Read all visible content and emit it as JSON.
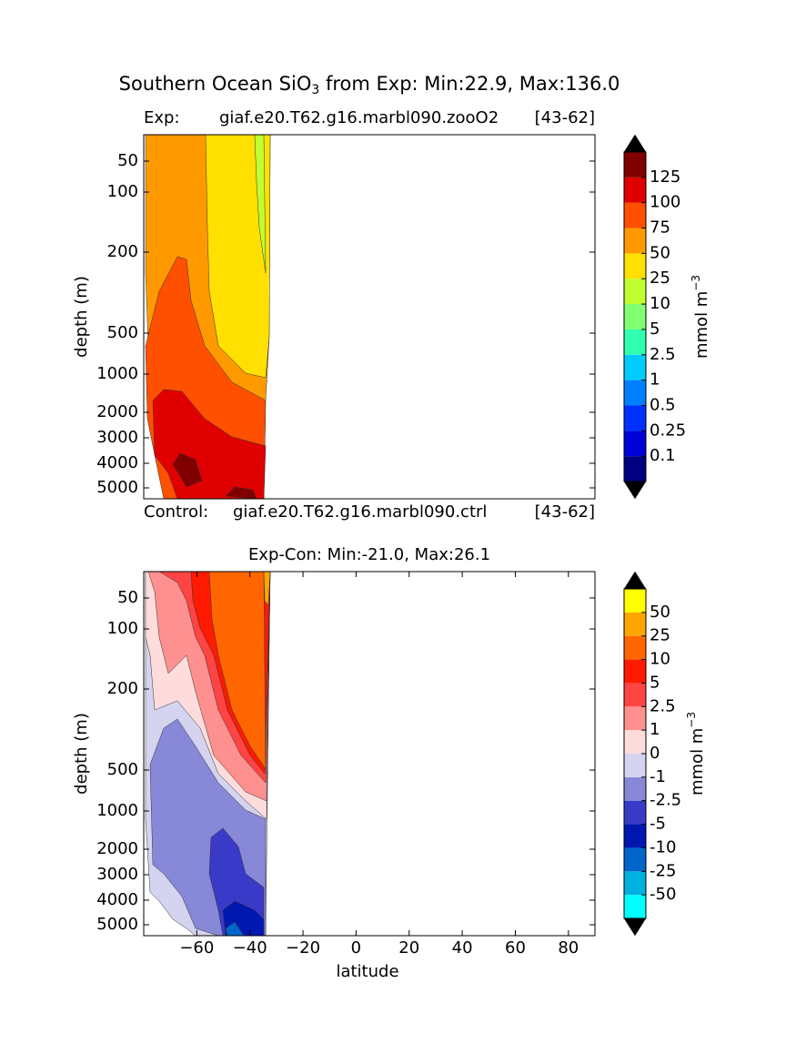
{
  "title": {
    "text": "Southern Ocean SiO",
    "sub": "3",
    "rest": " from Exp: Min:22.9, Max:136.0"
  },
  "chart_data": [
    {
      "type": "contour",
      "label_left": "Exp:",
      "label_center": "giaf.e20.T62.g16.marbl090.zooO2",
      "label_right": "[43-62]",
      "ylabel": "depth (m)",
      "ylim": [
        5500,
        5
      ],
      "yticks": [
        50,
        100,
        200,
        500,
        1000,
        2000,
        3000,
        4000,
        5000
      ],
      "xlim": [
        -80,
        90
      ],
      "colorbar": {
        "label": "mmol m",
        "label_sup": "−3",
        "levels": [
          0.1,
          0.25,
          0.5,
          1,
          2.5,
          5,
          10,
          25,
          50,
          75,
          100,
          125
        ],
        "colors": [
          "#000080",
          "#0000d8",
          "#0030ff",
          "#0080ff",
          "#00ccff",
          "#30ffb0",
          "#80ff70",
          "#c0ff30",
          "#ffe000",
          "#ff9900",
          "#ff5000",
          "#e00000",
          "#800000"
        ]
      }
    },
    {
      "type": "contour",
      "label_left": "Control:",
      "label_center": "giaf.e20.T62.g16.marbl090.ctrl",
      "label_right": "[43-62]",
      "title": "Exp-Con: Min:-21.0, Max:26.1",
      "ylabel": "depth (m)",
      "xlabel": "latitude",
      "ylim": [
        5500,
        5
      ],
      "yticks": [
        50,
        100,
        200,
        500,
        1000,
        2000,
        3000,
        4000,
        5000
      ],
      "xlim": [
        -80,
        90
      ],
      "xticks": [
        {
          "value": -60,
          "label": "−60"
        },
        {
          "value": -40,
          "label": "−40"
        },
        {
          "value": -20,
          "label": "−20"
        },
        0,
        20,
        40,
        60,
        80
      ],
      "colorbar": {
        "label": "mmol m",
        "label_sup": "−3",
        "levels": [
          -50,
          -25,
          -10,
          -5,
          -2.5,
          -1,
          0,
          1,
          2.5,
          5,
          10,
          25,
          50
        ],
        "colors": [
          "#00ffff",
          "#00b0e0",
          "#0066cc",
          "#0018b0",
          "#3a3ac8",
          "#8888d8",
          "#d4d4f0",
          "#ffdcdc",
          "#ff9090",
          "#ff4444",
          "#ff1a00",
          "#ff6600",
          "#ffa500",
          "#ffff00"
        ]
      }
    }
  ]
}
